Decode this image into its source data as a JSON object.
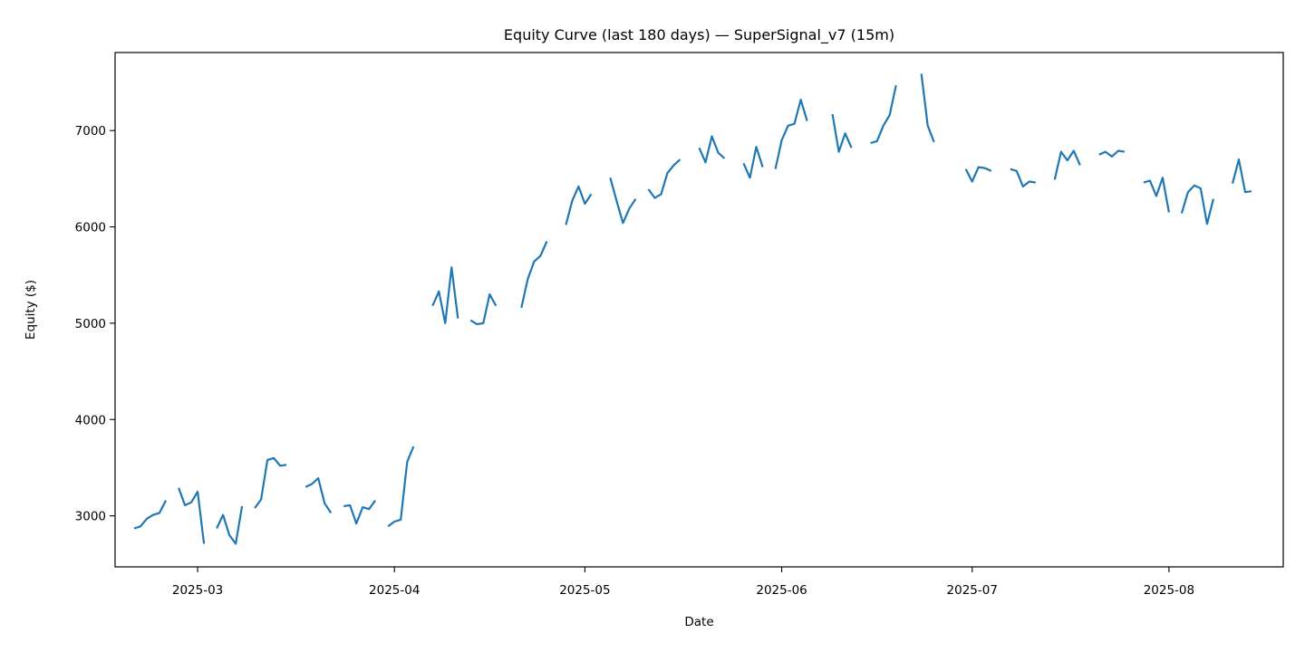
{
  "chart_data": {
    "type": "line",
    "title": "Equity Curve (last 180 days) — SuperSignal_v7 (15m)",
    "xlabel": "Date",
    "ylabel": "Equity ($)",
    "xlim": [
      "2025-02-16",
      "2025-08-19"
    ],
    "ylim": [
      2470,
      7810
    ],
    "x_ticks": [
      "2025-03-01",
      "2025-04-01",
      "2025-05-01",
      "2025-06-01",
      "2025-07-01",
      "2025-08-01"
    ],
    "x_tick_labels": [
      "2025-03",
      "2025-04",
      "2025-05",
      "2025-06",
      "2025-07",
      "2025-08"
    ],
    "y_ticks": [
      3000,
      4000,
      5000,
      6000,
      7000
    ],
    "y_tick_labels": [
      "3000",
      "4000",
      "5000",
      "6000",
      "7000"
    ],
    "grid": false,
    "line_color": "#1f77b4",
    "series": [
      {
        "segments": [
          [
            [
              "2025-02-19",
              2870
            ],
            [
              "2025-02-20",
              2890
            ],
            [
              "2025-02-21",
              2970
            ],
            [
              "2025-02-22",
              3010
            ],
            [
              "2025-02-23",
              3030
            ],
            [
              "2025-02-24",
              3160
            ]
          ],
          [
            [
              "2025-02-26",
              3290
            ],
            [
              "2025-02-27",
              3110
            ],
            [
              "2025-02-28",
              3140
            ],
            [
              "2025-03-01",
              3250
            ],
            [
              "2025-03-02",
              2710
            ]
          ],
          [
            [
              "2025-03-04",
              2870
            ],
            [
              "2025-03-05",
              3010
            ],
            [
              "2025-03-06",
              2800
            ],
            [
              "2025-03-07",
              2710
            ],
            [
              "2025-03-08",
              3100
            ]
          ],
          [
            [
              "2025-03-10",
              3080
            ],
            [
              "2025-03-11",
              3170
            ],
            [
              "2025-03-12",
              3580
            ],
            [
              "2025-03-13",
              3600
            ],
            [
              "2025-03-14",
              3520
            ],
            [
              "2025-03-15",
              3530
            ]
          ],
          [
            [
              "2025-03-18",
              3300
            ],
            [
              "2025-03-19",
              3330
            ],
            [
              "2025-03-20",
              3390
            ],
            [
              "2025-03-21",
              3130
            ],
            [
              "2025-03-22",
              3030
            ]
          ],
          [
            [
              "2025-03-24",
              3100
            ],
            [
              "2025-03-25",
              3110
            ],
            [
              "2025-03-26",
              2920
            ],
            [
              "2025-03-27",
              3090
            ],
            [
              "2025-03-28",
              3070
            ],
            [
              "2025-03-29",
              3160
            ]
          ],
          [
            [
              "2025-03-31",
              2890
            ],
            [
              "2025-04-01",
              2940
            ],
            [
              "2025-04-02",
              2960
            ],
            [
              "2025-04-03",
              3560
            ],
            [
              "2025-04-04",
              3720
            ]
          ],
          [
            [
              "2025-04-07",
              5180
            ],
            [
              "2025-04-08",
              5330
            ],
            [
              "2025-04-09",
              5000
            ],
            [
              "2025-04-10",
              5580
            ],
            [
              "2025-04-11",
              5050
            ]
          ],
          [
            [
              "2025-04-13",
              5030
            ],
            [
              "2025-04-14",
              4990
            ],
            [
              "2025-04-15",
              5000
            ],
            [
              "2025-04-16",
              5300
            ],
            [
              "2025-04-17",
              5180
            ]
          ],
          [
            [
              "2025-04-21",
              5160
            ],
            [
              "2025-04-22",
              5460
            ],
            [
              "2025-04-23",
              5640
            ],
            [
              "2025-04-24",
              5700
            ],
            [
              "2025-04-25",
              5850
            ]
          ],
          [
            [
              "2025-04-28",
              6020
            ],
            [
              "2025-04-29",
              6270
            ],
            [
              "2025-04-30",
              6420
            ],
            [
              "2025-05-01",
              6240
            ],
            [
              "2025-05-02",
              6340
            ]
          ],
          [
            [
              "2025-05-05",
              6510
            ],
            [
              "2025-05-06",
              6270
            ],
            [
              "2025-05-07",
              6040
            ],
            [
              "2025-05-08",
              6190
            ],
            [
              "2025-05-09",
              6290
            ]
          ],
          [
            [
              "2025-05-11",
              6390
            ],
            [
              "2025-05-12",
              6300
            ],
            [
              "2025-05-13",
              6340
            ],
            [
              "2025-05-14",
              6560
            ],
            [
              "2025-05-15",
              6640
            ],
            [
              "2025-05-16",
              6700
            ]
          ],
          [
            [
              "2025-05-19",
              6820
            ],
            [
              "2025-05-20",
              6670
            ],
            [
              "2025-05-21",
              6940
            ],
            [
              "2025-05-22",
              6770
            ],
            [
              "2025-05-23",
              6710
            ]
          ],
          [
            [
              "2025-05-26",
              6660
            ],
            [
              "2025-05-27",
              6510
            ],
            [
              "2025-05-28",
              6830
            ],
            [
              "2025-05-29",
              6620
            ]
          ],
          [
            [
              "2025-05-31",
              6600
            ],
            [
              "2025-06-01",
              6900
            ],
            [
              "2025-06-02",
              7050
            ],
            [
              "2025-06-03",
              7070
            ],
            [
              "2025-06-04",
              7320
            ],
            [
              "2025-06-05",
              7100
            ]
          ],
          [
            [
              "2025-06-09",
              7170
            ],
            [
              "2025-06-10",
              6780
            ],
            [
              "2025-06-11",
              6970
            ],
            [
              "2025-06-12",
              6820
            ]
          ],
          [
            [
              "2025-06-15",
              6870
            ],
            [
              "2025-06-16",
              6890
            ],
            [
              "2025-06-17",
              7050
            ],
            [
              "2025-06-18",
              7160
            ],
            [
              "2025-06-19",
              7470
            ]
          ],
          [
            [
              "2025-06-23",
              7590
            ],
            [
              "2025-06-24",
              7050
            ],
            [
              "2025-06-25",
              6880
            ]
          ],
          [
            [
              "2025-06-30",
              6600
            ],
            [
              "2025-07-01",
              6470
            ],
            [
              "2025-07-02",
              6620
            ],
            [
              "2025-07-03",
              6610
            ],
            [
              "2025-07-04",
              6580
            ]
          ],
          [
            [
              "2025-07-07",
              6600
            ],
            [
              "2025-07-08",
              6580
            ],
            [
              "2025-07-09",
              6420
            ],
            [
              "2025-07-10",
              6470
            ],
            [
              "2025-07-11",
              6460
            ]
          ],
          [
            [
              "2025-07-14",
              6490
            ],
            [
              "2025-07-15",
              6780
            ],
            [
              "2025-07-16",
              6690
            ],
            [
              "2025-07-17",
              6790
            ],
            [
              "2025-07-18",
              6640
            ]
          ],
          [
            [
              "2025-07-21",
              6750
            ],
            [
              "2025-07-22",
              6780
            ],
            [
              "2025-07-23",
              6730
            ],
            [
              "2025-07-24",
              6790
            ],
            [
              "2025-07-25",
              6780
            ]
          ],
          [
            [
              "2025-07-28",
              6460
            ],
            [
              "2025-07-29",
              6480
            ],
            [
              "2025-07-30",
              6320
            ],
            [
              "2025-07-31",
              6510
            ],
            [
              "2025-08-01",
              6150
            ]
          ],
          [
            [
              "2025-08-03",
              6140
            ],
            [
              "2025-08-04",
              6360
            ],
            [
              "2025-08-05",
              6430
            ],
            [
              "2025-08-06",
              6400
            ],
            [
              "2025-08-07",
              6030
            ],
            [
              "2025-08-08",
              6290
            ]
          ],
          [
            [
              "2025-08-11",
              6450
            ],
            [
              "2025-08-12",
              6700
            ],
            [
              "2025-08-13",
              6360
            ],
            [
              "2025-08-14",
              6370
            ]
          ]
        ]
      }
    ]
  }
}
